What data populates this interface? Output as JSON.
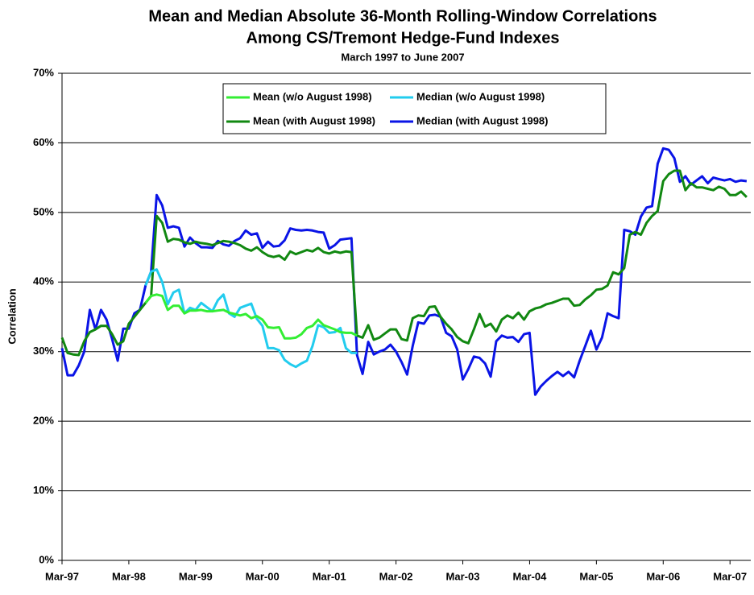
{
  "chart_data": {
    "type": "line",
    "title": [
      "Mean and Median Absolute 36-Month Rolling-Window Correlations",
      "Among CS/Tremont Hedge-Fund Indexes"
    ],
    "subtitle": "March 1997 to June 2007",
    "y_label": "Correlation",
    "categories": [
      "Mar-97",
      null,
      null,
      null,
      null,
      null,
      null,
      null,
      null,
      null,
      null,
      null,
      "Mar-98",
      null,
      null,
      null,
      null,
      null,
      null,
      null,
      null,
      null,
      null,
      null,
      "Mar-99",
      null,
      null,
      null,
      null,
      null,
      null,
      null,
      null,
      null,
      null,
      null,
      "Mar-00",
      null,
      null,
      null,
      null,
      null,
      null,
      null,
      null,
      null,
      null,
      null,
      "Mar-01",
      null,
      null,
      null,
      null,
      null,
      null,
      null,
      null,
      null,
      null,
      null,
      "Mar-02",
      null,
      null,
      null,
      null,
      null,
      null,
      null,
      null,
      null,
      null,
      null,
      "Mar-03",
      null,
      null,
      null,
      null,
      null,
      null,
      null,
      null,
      null,
      null,
      null,
      "Mar-04",
      null,
      null,
      null,
      null,
      null,
      null,
      null,
      null,
      null,
      null,
      null,
      "Mar-05",
      null,
      null,
      null,
      null,
      null,
      null,
      null,
      null,
      null,
      null,
      null,
      "Mar-06",
      null,
      null,
      null,
      null,
      null,
      null,
      null,
      null,
      null,
      null,
      null,
      "Mar-07",
      null,
      null,
      null
    ],
    "series": [
      {
        "name": "Mean (w/o August 1998)",
        "color": "#33ee33",
        "values": [
          null,
          null,
          null,
          null,
          null,
          null,
          null,
          null,
          null,
          null,
          null,
          null,
          null,
          null,
          null,
          37,
          38,
          38.2,
          38,
          36,
          36.6,
          36.6,
          35.5,
          35.9,
          35.9,
          36,
          35.8,
          35.8,
          35.9,
          36,
          35.6,
          35.4,
          35.2,
          35.4,
          34.8,
          35.1,
          34.6,
          33.5,
          33.4,
          33.5,
          31.9,
          31.9,
          32,
          32.5,
          33.4,
          33.7,
          34.6,
          33.8,
          33.5,
          33.2,
          32.8,
          32.7,
          32.7,
          32.3,
          null,
          null,
          null,
          null,
          null,
          null,
          null,
          null,
          null,
          null,
          null,
          null,
          null,
          null,
          null,
          null,
          null,
          null,
          null,
          null,
          null,
          null,
          null,
          null,
          null,
          null,
          null,
          null,
          null,
          null,
          null,
          null,
          null,
          null,
          null,
          null,
          null,
          null,
          null,
          null,
          null,
          null,
          null,
          null,
          null,
          null,
          null,
          null,
          null,
          null,
          null,
          null,
          null,
          null,
          null,
          null,
          null,
          null,
          null,
          null,
          null,
          null,
          null,
          null,
          null,
          null,
          null,
          null,
          null,
          null
        ]
      },
      {
        "name": "Median (w/o August 1998)",
        "color": "#22ccee",
        "values": [
          null,
          null,
          null,
          null,
          null,
          null,
          null,
          null,
          null,
          null,
          null,
          null,
          null,
          null,
          null,
          39.5,
          41.5,
          41.8,
          40,
          36.8,
          38.5,
          38.9,
          35.5,
          36.3,
          36,
          37,
          36.4,
          35.8,
          37.4,
          38.2,
          35.5,
          35,
          36.3,
          36.6,
          36.9,
          34.7,
          33.7,
          30.5,
          30.5,
          30.2,
          28.8,
          28.2,
          27.8,
          28.3,
          28.7,
          30.8,
          33.8,
          33.5,
          32.7,
          32.8,
          33.4,
          30.5,
          29.8,
          29.8,
          null,
          null,
          null,
          null,
          null,
          null,
          null,
          null,
          null,
          null,
          null,
          null,
          null,
          null,
          null,
          null,
          null,
          null,
          null,
          null,
          null,
          null,
          null,
          null,
          null,
          null,
          null,
          null,
          null,
          null,
          null,
          null,
          null,
          null,
          null,
          null,
          null,
          null,
          null,
          null,
          null,
          null,
          null,
          null,
          null,
          null,
          null,
          null,
          null,
          null,
          null,
          null,
          null,
          null,
          null,
          null,
          null,
          null,
          null,
          null,
          null,
          null,
          null,
          null,
          null,
          null,
          null,
          null,
          null,
          null
        ]
      },
      {
        "name": "Mean (with August 1998)",
        "color": "#118811",
        "values": [
          32,
          29.8,
          29.6,
          29.5,
          31.5,
          32.8,
          33.2,
          33.7,
          33.7,
          32.5,
          31,
          31.5,
          34,
          35,
          36,
          37,
          38,
          49.5,
          48.5,
          45.8,
          46.2,
          46.1,
          45.7,
          45.5,
          45.8,
          45.6,
          45.5,
          45.3,
          45.6,
          45.9,
          45.8,
          45.6,
          45.3,
          44.8,
          44.5,
          45,
          44.3,
          43.8,
          43.6,
          43.8,
          43.2,
          44.4,
          44,
          44.3,
          44.6,
          44.4,
          44.9,
          44.3,
          44.1,
          44.4,
          44.2,
          44.4,
          44.3,
          32.3,
          32,
          33.8,
          31.7,
          32,
          32.6,
          33.2,
          33.2,
          31.8,
          31.6,
          34.8,
          35.2,
          35.1,
          36.4,
          36.5,
          35,
          34,
          33.2,
          32.1,
          31.5,
          31.2,
          33.2,
          35.4,
          33.6,
          34,
          32.9,
          34.6,
          35.2,
          34.8,
          35.6,
          34.6,
          35.8,
          36.2,
          36.4,
          36.8,
          37,
          37.3,
          37.6,
          37.6,
          36.6,
          36.7,
          37.5,
          38.1,
          38.9,
          39,
          39.5,
          41.4,
          41.1,
          42,
          46.8,
          47.2,
          46.8,
          48.5,
          49.5,
          50.2,
          54.5,
          55.5,
          56,
          56,
          53.2,
          54.2,
          53.6,
          53.6,
          53.4,
          53.2,
          53.7,
          53.4,
          52.5,
          52.5,
          53,
          52.2
        ]
      },
      {
        "name": "Median (with August 1998)",
        "color": "#0a14e6",
        "values": [
          30.5,
          26.6,
          26.6,
          28,
          30,
          36,
          33.2,
          36,
          34.6,
          31.8,
          28.7,
          33.3,
          33.3,
          35.5,
          36,
          39.5,
          41.5,
          52.5,
          51,
          47.8,
          48,
          47.8,
          45.1,
          46.4,
          45.6,
          45,
          45,
          44.9,
          45.9,
          45.4,
          45.2,
          45.9,
          46.3,
          47.4,
          46.8,
          47,
          44.9,
          45.8,
          45.1,
          45.2,
          46,
          47.7,
          47.5,
          47.4,
          47.5,
          47.4,
          47.2,
          47.1,
          44.8,
          45.3,
          46.1,
          46.2,
          46.3,
          29.5,
          26.8,
          31.4,
          29.6,
          30,
          30.3,
          31,
          30,
          28.5,
          26.7,
          30.8,
          34.2,
          34,
          35.2,
          35.3,
          35,
          32.7,
          32.2,
          30.3,
          26,
          27.5,
          29.3,
          29.1,
          28.3,
          26.4,
          31.5,
          32.3,
          32,
          32.1,
          31.4,
          32.5,
          32.7,
          23.8,
          25,
          25.8,
          26.5,
          27.1,
          26.5,
          27.1,
          26.3,
          28.7,
          30.8,
          33,
          30.3,
          32,
          35.5,
          35.1,
          34.8,
          47.5,
          47.3,
          46.8,
          49.4,
          50.7,
          50.9,
          57,
          59.2,
          59,
          57.8,
          54.4,
          55.2,
          54,
          54.6,
          55.2,
          54.2,
          55,
          54.8,
          54.6,
          54.8,
          54.4,
          54.6,
          54.5
        ]
      }
    ],
    "ylim": [
      0,
      70
    ],
    "yticks": [
      {
        "value": 0,
        "label": "0%"
      },
      {
        "value": 10,
        "label": "10%"
      },
      {
        "value": 20,
        "label": "20%"
      },
      {
        "value": 30,
        "label": "30%"
      },
      {
        "value": 40,
        "label": "40%"
      },
      {
        "value": 50,
        "label": "50%"
      },
      {
        "value": 60,
        "label": "60%"
      },
      {
        "value": 70,
        "label": "70%"
      }
    ],
    "grid": true,
    "legend": "top"
  }
}
